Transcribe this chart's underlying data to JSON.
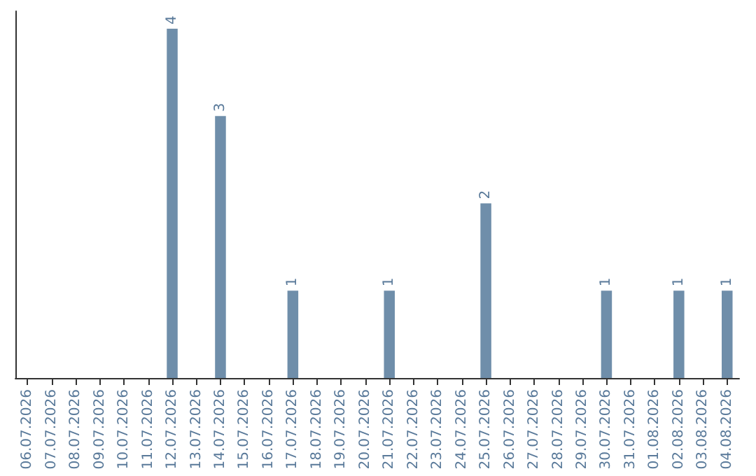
{
  "chart_data": {
    "type": "bar",
    "categories": [
      "06.07.2026",
      "07.07.2026",
      "08.07.2026",
      "09.07.2026",
      "10.07.2026",
      "11.07.2026",
      "12.07.2026",
      "13.07.2026",
      "14.07.2026",
      "15.07.2026",
      "16.07.2026",
      "17.07.2026",
      "18.07.2026",
      "19.07.2026",
      "20.07.2026",
      "21.07.2026",
      "22.07.2026",
      "23.07.2026",
      "24.07.2026",
      "25.07.2026",
      "26.07.2026",
      "27.07.2026",
      "28.07.2026",
      "29.07.2026",
      "30.07.2026",
      "31.07.2026",
      "01.08.2026",
      "02.08.2026",
      "03.08.2026",
      "04.08.2026"
    ],
    "values": [
      0,
      0,
      0,
      0,
      0,
      0,
      4,
      0,
      3,
      0,
      0,
      1,
      0,
      0,
      0,
      1,
      0,
      0,
      0,
      2,
      0,
      0,
      0,
      0,
      1,
      0,
      0,
      1,
      0,
      1
    ],
    "value_labels": [
      null,
      null,
      null,
      null,
      null,
      null,
      "4",
      null,
      "3",
      null,
      null,
      "1",
      null,
      null,
      null,
      "1",
      null,
      null,
      null,
      "2",
      null,
      null,
      null,
      null,
      "1",
      null,
      null,
      "1",
      null,
      "1"
    ],
    "color": "#6f8eaa",
    "ylim": [
      0,
      4.2
    ],
    "tick_labels": "x",
    "grid": false
  }
}
